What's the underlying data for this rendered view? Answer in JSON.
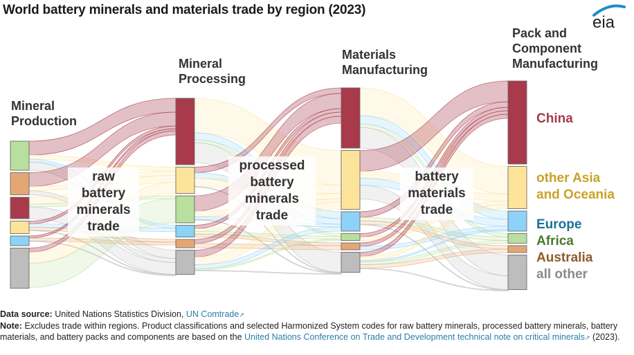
{
  "header": {
    "title": "World battery minerals and materials trade by region (2023)",
    "logo_text": "eia"
  },
  "chart_data": {
    "type": "sankey",
    "title": "World battery minerals and materials trade by region (2023)",
    "value_units": "relative trade volume (estimated from bar heights, arbitrary units)",
    "stages": [
      {
        "id": "s1",
        "label_lines": [
          "Mineral",
          "Production"
        ]
      },
      {
        "id": "s2",
        "label_lines": [
          "Mineral",
          "Processing"
        ]
      },
      {
        "id": "s3",
        "label_lines": [
          "Materials",
          "Manufacturing"
        ]
      },
      {
        "id": "s4",
        "label_lines": [
          "Pack and",
          "Component",
          "Manufacturing"
        ]
      }
    ],
    "trade_labels": [
      {
        "between": [
          "s1",
          "s2"
        ],
        "lines": [
          "raw",
          "battery",
          "minerals",
          "trade"
        ]
      },
      {
        "between": [
          "s2",
          "s3"
        ],
        "lines": [
          "processed",
          "battery",
          "minerals",
          "trade"
        ]
      },
      {
        "between": [
          "s3",
          "s4"
        ],
        "lines": [
          "battery",
          "materials",
          "trade"
        ]
      }
    ],
    "regions": [
      {
        "id": "china",
        "label": "China",
        "color": "#a83a4b",
        "text_color": "#a33a4c"
      },
      {
        "id": "asia",
        "label": "other Asia and Oceania",
        "label_lines": [
          "other Asia",
          "and Oceania"
        ],
        "color": "#fde49a",
        "text_color": "#c9a227"
      },
      {
        "id": "europe",
        "label": "Europe",
        "color": "#8dd3f7",
        "text_color": "#1a7196"
      },
      {
        "id": "africa",
        "label": "Africa",
        "color": "#b9df9e",
        "text_color": "#4b7a2b"
      },
      {
        "id": "australia",
        "label": "Australia",
        "color": "#e4a774",
        "text_color": "#8f5a2a"
      },
      {
        "id": "other",
        "label": "all other",
        "color": "#bdbdbd",
        "text_color": "#8a8a8a"
      }
    ],
    "nodes": {
      "s1": [
        {
          "region": "africa",
          "value": 42
        },
        {
          "region": "australia",
          "value": 32
        },
        {
          "region": "china",
          "value": 31
        },
        {
          "region": "asia",
          "value": 18
        },
        {
          "region": "europe",
          "value": 14
        },
        {
          "region": "other",
          "value": 58
        }
      ],
      "s2": [
        {
          "region": "china",
          "value": 96
        },
        {
          "region": "asia",
          "value": 38
        },
        {
          "region": "africa",
          "value": 39
        },
        {
          "region": "europe",
          "value": 17
        },
        {
          "region": "australia",
          "value": 12
        },
        {
          "region": "other",
          "value": 35
        }
      ],
      "s3": [
        {
          "region": "china",
          "value": 87
        },
        {
          "region": "asia",
          "value": 85
        },
        {
          "region": "europe",
          "value": 28
        },
        {
          "region": "africa",
          "value": 10
        },
        {
          "region": "australia",
          "value": 10
        },
        {
          "region": "other",
          "value": 29
        }
      ],
      "s4": [
        {
          "region": "china",
          "value": 120
        },
        {
          "region": "asia",
          "value": 61
        },
        {
          "region": "europe",
          "value": 29
        },
        {
          "region": "africa",
          "value": 14
        },
        {
          "region": "australia",
          "value": 10
        },
        {
          "region": "other",
          "value": 50
        }
      ]
    },
    "links": [
      {
        "from": "s1",
        "source": "africa",
        "target": "china",
        "value": 20
      },
      {
        "from": "s1",
        "source": "africa",
        "target": "asia",
        "value": 6
      },
      {
        "from": "s1",
        "source": "africa",
        "target": "europe",
        "value": 4
      },
      {
        "from": "s1",
        "source": "africa",
        "target": "other",
        "value": 12
      },
      {
        "from": "s1",
        "source": "australia",
        "target": "china",
        "value": 20
      },
      {
        "from": "s1",
        "source": "australia",
        "target": "asia",
        "value": 6
      },
      {
        "from": "s1",
        "source": "australia",
        "target": "other",
        "value": 6
      },
      {
        "from": "s1",
        "source": "china",
        "target": "asia",
        "value": 10
      },
      {
        "from": "s1",
        "source": "china",
        "target": "africa",
        "value": 4
      },
      {
        "from": "s1",
        "source": "china",
        "target": "other",
        "value": 17
      },
      {
        "from": "s1",
        "source": "asia",
        "target": "china",
        "value": 4
      },
      {
        "from": "s1",
        "source": "asia",
        "target": "europe",
        "value": 5
      },
      {
        "from": "s1",
        "source": "asia",
        "target": "australia",
        "value": 4
      },
      {
        "from": "s1",
        "source": "asia",
        "target": "other",
        "value": 5
      },
      {
        "from": "s1",
        "source": "europe",
        "target": "china",
        "value": 3
      },
      {
        "from": "s1",
        "source": "europe",
        "target": "australia",
        "value": 4
      },
      {
        "from": "s1",
        "source": "europe",
        "target": "other",
        "value": 7
      },
      {
        "from": "s1",
        "source": "other",
        "target": "china",
        "value": 6
      },
      {
        "from": "s1",
        "source": "other",
        "target": "asia",
        "value": 18
      },
      {
        "from": "s1",
        "source": "other",
        "target": "africa",
        "value": 35
      },
      {
        "from": "s2",
        "source": "china",
        "target": "asia",
        "value": 50
      },
      {
        "from": "s2",
        "source": "china",
        "target": "europe",
        "value": 10
      },
      {
        "from": "s2",
        "source": "china",
        "target": "africa",
        "value": 4
      },
      {
        "from": "s2",
        "source": "china",
        "target": "other",
        "value": 32
      },
      {
        "from": "s2",
        "source": "asia",
        "target": "china",
        "value": 8
      },
      {
        "from": "s2",
        "source": "asia",
        "target": "europe",
        "value": 8
      },
      {
        "from": "s2",
        "source": "asia",
        "target": "asia",
        "value": 12
      },
      {
        "from": "s2",
        "source": "asia",
        "target": "other",
        "value": 10
      },
      {
        "from": "s2",
        "source": "africa",
        "target": "china",
        "value": 22
      },
      {
        "from": "s2",
        "source": "africa",
        "target": "asia",
        "value": 8
      },
      {
        "from": "s2",
        "source": "africa",
        "target": "europe",
        "value": 4
      },
      {
        "from": "s2",
        "source": "africa",
        "target": "other",
        "value": 5
      },
      {
        "from": "s2",
        "source": "europe",
        "target": "china",
        "value": 5
      },
      {
        "from": "s2",
        "source": "europe",
        "target": "asia",
        "value": 4
      },
      {
        "from": "s2",
        "source": "europe",
        "target": "africa",
        "value": 4
      },
      {
        "from": "s2",
        "source": "europe",
        "target": "australia",
        "value": 4
      },
      {
        "from": "s2",
        "source": "australia",
        "target": "china",
        "value": 6
      },
      {
        "from": "s2",
        "source": "australia",
        "target": "australia",
        "value": 6
      },
      {
        "from": "s2",
        "source": "other",
        "target": "china",
        "value": 10
      },
      {
        "from": "s2",
        "source": "other",
        "target": "asia",
        "value": 11
      },
      {
        "from": "s2",
        "source": "other",
        "target": "europe",
        "value": 6
      },
      {
        "from": "s2",
        "source": "other",
        "target": "africa",
        "value": 2
      },
      {
        "from": "s2",
        "source": "other",
        "target": "other",
        "value": 6
      },
      {
        "from": "s3",
        "source": "china",
        "target": "asia",
        "value": 40
      },
      {
        "from": "s3",
        "source": "china",
        "target": "europe",
        "value": 12
      },
      {
        "from": "s3",
        "source": "china",
        "target": "africa",
        "value": 5
      },
      {
        "from": "s3",
        "source": "china",
        "target": "other",
        "value": 30
      },
      {
        "from": "s3",
        "source": "asia",
        "target": "china",
        "value": 30
      },
      {
        "from": "s3",
        "source": "asia",
        "target": "asia",
        "value": 10
      },
      {
        "from": "s3",
        "source": "asia",
        "target": "europe",
        "value": 10
      },
      {
        "from": "s3",
        "source": "asia",
        "target": "other",
        "value": 35
      },
      {
        "from": "s3",
        "source": "europe",
        "target": "china",
        "value": 8
      },
      {
        "from": "s3",
        "source": "europe",
        "target": "africa",
        "value": 5
      },
      {
        "from": "s3",
        "source": "europe",
        "target": "australia",
        "value": 5
      },
      {
        "from": "s3",
        "source": "europe",
        "target": "other",
        "value": 10
      },
      {
        "from": "s3",
        "source": "africa",
        "target": "china",
        "value": 5
      },
      {
        "from": "s3",
        "source": "africa",
        "target": "asia",
        "value": 5
      },
      {
        "from": "s3",
        "source": "australia",
        "target": "china",
        "value": 5
      },
      {
        "from": "s3",
        "source": "australia",
        "target": "europe",
        "value": 5
      },
      {
        "from": "s3",
        "source": "other",
        "target": "china",
        "value": 6
      },
      {
        "from": "s3",
        "source": "other",
        "target": "asia",
        "value": 6
      },
      {
        "from": "s3",
        "source": "other",
        "target": "europe",
        "value": 2
      },
      {
        "from": "s3",
        "source": "other",
        "target": "africa",
        "value": 4
      },
      {
        "from": "s3",
        "source": "other",
        "target": "australia",
        "value": 5
      },
      {
        "from": "s3",
        "source": "other",
        "target": "other",
        "value": 6
      }
    ]
  },
  "footer": {
    "source_label": "Data source:",
    "source_text": "United Nations Statistics Division,",
    "source_link": "UN Comtrade",
    "note_label": "Note:",
    "note_text_1": "Excludes trade within regions. Product classifications and selected Harmonized System codes for raw battery minerals, processed battery minerals, battery materials, and battery packs and components are based on the",
    "note_link": "United Nations Conference on Trade and Development technical note on critical minerals",
    "note_text_2": "(2023)."
  },
  "icons": {
    "external_link": "external-link-icon"
  }
}
